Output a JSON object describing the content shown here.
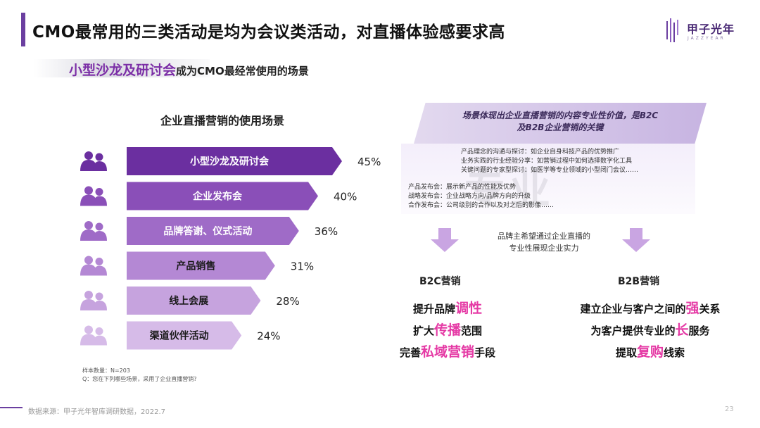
{
  "header": {
    "title": "CMO最常用的三类活动是均为会议类活动，对直播体验感要求高",
    "logo_text": "甲子光年",
    "logo_sub": "JAZZYEAR"
  },
  "subtitle": {
    "highlight": "小型沙龙及研讨会",
    "rest": "成为CMO最经常使用的场景"
  },
  "chart_data": {
    "type": "bar",
    "title": "企业直播营销的使用场景",
    "categories": [
      "小型沙龙及研讨会",
      "企业发布会",
      "品牌答谢、仪式活动",
      "产品销售",
      "线上会展",
      "渠道伙伴活动"
    ],
    "values": [
      45,
      40,
      36,
      31,
      28,
      24
    ],
    "value_labels": [
      "45%",
      "40%",
      "36%",
      "31%",
      "28%",
      "24%"
    ],
    "colors": [
      "#6b2fa0",
      "#8a4fb8",
      "#9f6bc7",
      "#b488d4",
      "#c6a3de",
      "#d6bbe8"
    ]
  },
  "notes": {
    "sample": "样本数量：N=203",
    "question": "Q：您在下列哪些场景，采用了企业直播营销?"
  },
  "footer": {
    "source": "数据来源：甲子光年智库调研数据，2022.7",
    "page": "23"
  },
  "right": {
    "banner_line1": "场景体现出企业直播营销的内容专业性价值，是B2C",
    "banner_line2": "及B2B企业营销的关键",
    "watermark": "专业",
    "list_a": [
      "产品理念的沟通与探讨：如企业自身科技产品的优势推广",
      "业务实践的行业经验分享：如营销过程中如何选择数字化工具",
      "关键问题的专家型探讨：如医学等专业领域的小型闭门会议……"
    ],
    "list_b": [
      "产品发布会：展示新产品的性能及优势",
      "战略发布会：企业战略方向/品牌方向的升级",
      "合作发布会：公司级别的合作以及对之后的影像……"
    ],
    "arrow_note_line1": "品牌主希望通过企业直播的",
    "arrow_note_line2": "专业性展现企业实力",
    "b2c": {
      "title": "B2C营销",
      "l1_a": "提升品牌",
      "l1_hl": "调性",
      "l2_a": "扩大",
      "l2_hl": "传播",
      "l2_b": "范围",
      "l3_a": "完善",
      "l3_hl": "私域营销",
      "l3_b": "手段"
    },
    "b2b": {
      "title": "B2B营销",
      "l1_a": "建立企业与客户之间的",
      "l1_hl": "强",
      "l1_b": "关系",
      "l2_a": "为客户提供专业的",
      "l2_hl": "长",
      "l2_b": "服务",
      "l3_a": "提取",
      "l3_hl": "复购",
      "l3_b": "线索"
    }
  }
}
